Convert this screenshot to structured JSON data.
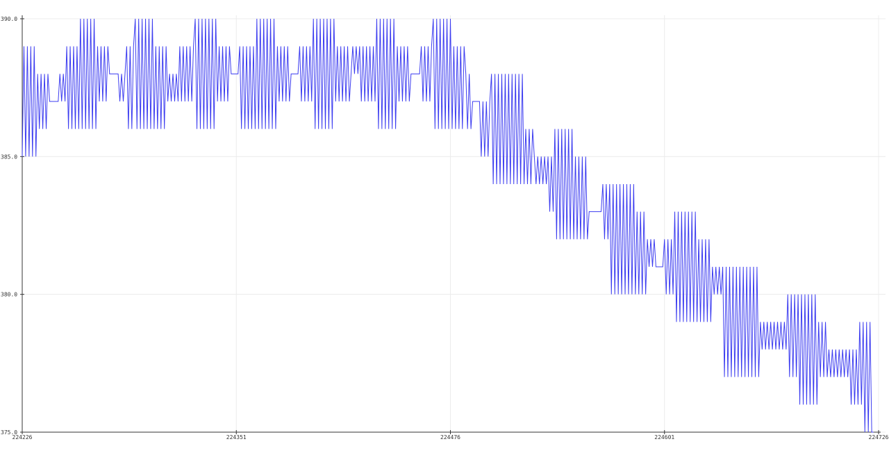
{
  "chart_data": {
    "type": "line",
    "title": "",
    "xlabel": "",
    "ylabel": "",
    "xlim": [
      224226,
      224726
    ],
    "ylim": [
      375,
      390
    ],
    "grid": true,
    "x_start": 224226,
    "x_ticks": [
      "224226",
      "224351",
      "224476",
      "224601",
      "224726"
    ],
    "y_ticks": [
      "375.0",
      "380.0",
      "385.0",
      "390.0"
    ],
    "line_color": "#3c3cf0",
    "series": [
      {
        "values": [
          385,
          389,
          385,
          389,
          385,
          389,
          385,
          389,
          385,
          388,
          386,
          388,
          386,
          388,
          386,
          388,
          387,
          387,
          387,
          387,
          387,
          387,
          388,
          387,
          388,
          387,
          389,
          386,
          389,
          386,
          389,
          386,
          389,
          386,
          390,
          386,
          390,
          386,
          390,
          386,
          390,
          386,
          390,
          386,
          389,
          387,
          389,
          387,
          389,
          387,
          389,
          388,
          388,
          388,
          388,
          388,
          388,
          387,
          388,
          387,
          388,
          389,
          386,
          389,
          386,
          389,
          390,
          386,
          390,
          386,
          390,
          386,
          390,
          386,
          390,
          386,
          390,
          386,
          389,
          386,
          389,
          386,
          389,
          386,
          389,
          387,
          388,
          387,
          388,
          387,
          388,
          387,
          389,
          387,
          389,
          387,
          389,
          387,
          389,
          387,
          389,
          390,
          386,
          390,
          386,
          390,
          386,
          390,
          386,
          390,
          386,
          390,
          386,
          390,
          387,
          389,
          387,
          389,
          387,
          389,
          387,
          389,
          388,
          388,
          388,
          388,
          388,
          389,
          386,
          389,
          386,
          389,
          386,
          389,
          386,
          389,
          386,
          390,
          386,
          390,
          386,
          390,
          386,
          390,
          386,
          390,
          386,
          390,
          386,
          389,
          387,
          389,
          387,
          389,
          387,
          389,
          387,
          388,
          388,
          388,
          388,
          388,
          389,
          387,
          389,
          387,
          389,
          387,
          389,
          387,
          390,
          386,
          390,
          386,
          390,
          386,
          390,
          386,
          390,
          386,
          390,
          386,
          390,
          387,
          389,
          387,
          389,
          387,
          389,
          387,
          389,
          387,
          388,
          389,
          388,
          389,
          388,
          389,
          387,
          389,
          387,
          389,
          387,
          389,
          387,
          389,
          387,
          390,
          386,
          390,
          386,
          390,
          386,
          390,
          386,
          390,
          386,
          390,
          386,
          389,
          387,
          389,
          387,
          389,
          387,
          389,
          387,
          388,
          388,
          388,
          388,
          388,
          388,
          389,
          387,
          389,
          387,
          389,
          387,
          389,
          390,
          386,
          390,
          386,
          390,
          386,
          390,
          386,
          390,
          386,
          390,
          386,
          389,
          386,
          389,
          386,
          389,
          386,
          389,
          388,
          386,
          388,
          386,
          387,
          387,
          387,
          387,
          387,
          385,
          387,
          385,
          387,
          385,
          387,
          388,
          384,
          388,
          384,
          388,
          384,
          388,
          384,
          388,
          384,
          388,
          384,
          388,
          384,
          388,
          384,
          388,
          384,
          388,
          384,
          386,
          384,
          386,
          384,
          386,
          385,
          384,
          385,
          384,
          385,
          384,
          385,
          384,
          385,
          383,
          385,
          383,
          386,
          382,
          386,
          382,
          386,
          382,
          386,
          382,
          386,
          382,
          386,
          382,
          385,
          382,
          385,
          382,
          385,
          382,
          385,
          382,
          383,
          383,
          383,
          383,
          383,
          383,
          383,
          383,
          384,
          382,
          384,
          382,
          384,
          380,
          384,
          380,
          384,
          380,
          384,
          380,
          384,
          380,
          384,
          380,
          384,
          380,
          384,
          380,
          383,
          380,
          383,
          380,
          383,
          380,
          382,
          381,
          382,
          381,
          382,
          381,
          381,
          381,
          381,
          381,
          382,
          380,
          382,
          380,
          382,
          380,
          383,
          379,
          383,
          379,
          383,
          379,
          383,
          379,
          383,
          379,
          383,
          379,
          383,
          379,
          382,
          379,
          382,
          379,
          382,
          379,
          382,
          379,
          381,
          380,
          381,
          380,
          381,
          380,
          381,
          377,
          381,
          377,
          381,
          377,
          381,
          377,
          381,
          377,
          381,
          377,
          381,
          377,
          381,
          377,
          381,
          377,
          381,
          377,
          381,
          377,
          379,
          378,
          379,
          378,
          379,
          378,
          379,
          378,
          379,
          378,
          379,
          378,
          379,
          378,
          379,
          378,
          380,
          377,
          380,
          377,
          380,
          377,
          380,
          376,
          380,
          376,
          380,
          376,
          380,
          376,
          380,
          376,
          380,
          376,
          379,
          377,
          379,
          377,
          379,
          377,
          378,
          377,
          378,
          377,
          378,
          377,
          378,
          377,
          378,
          377,
          378,
          377,
          378,
          376,
          378,
          376,
          378,
          376,
          379,
          376,
          379,
          375,
          379,
          375,
          379,
          375,
          375
        ]
      }
    ]
  }
}
